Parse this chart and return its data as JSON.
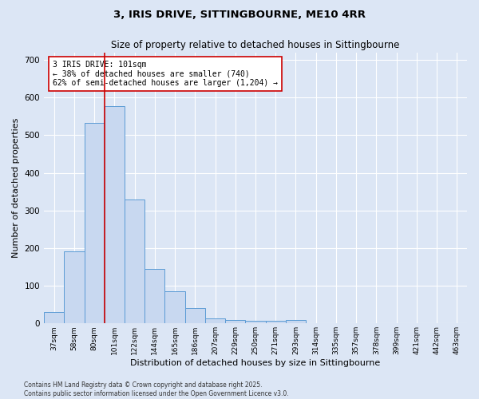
{
  "title_line1": "3, IRIS DRIVE, SITTINGBOURNE, ME10 4RR",
  "title_line2": "Size of property relative to detached houses in Sittingbourne",
  "xlabel": "Distribution of detached houses by size in Sittingbourne",
  "ylabel": "Number of detached properties",
  "categories": [
    "37sqm",
    "58sqm",
    "80sqm",
    "101sqm",
    "122sqm",
    "144sqm",
    "165sqm",
    "186sqm",
    "207sqm",
    "229sqm",
    "250sqm",
    "271sqm",
    "293sqm",
    "314sqm",
    "335sqm",
    "357sqm",
    "378sqm",
    "399sqm",
    "421sqm",
    "442sqm",
    "463sqm"
  ],
  "values": [
    30,
    192,
    533,
    578,
    330,
    145,
    85,
    40,
    13,
    10,
    7,
    7,
    10,
    0,
    0,
    0,
    0,
    0,
    0,
    0,
    0
  ],
  "bar_color": "#c8d8f0",
  "bar_edge_color": "#5b9bd5",
  "background_color": "#dce6f5",
  "grid_color": "#ffffff",
  "red_line_index": 3,
  "annotation_text": "3 IRIS DRIVE: 101sqm\n← 38% of detached houses are smaller (740)\n62% of semi-detached houses are larger (1,204) →",
  "annotation_box_color": "#ffffff",
  "annotation_box_edge": "#cc0000",
  "annotation_text_color": "#000000",
  "red_line_color": "#cc0000",
  "ylim": [
    0,
    720
  ],
  "yticks": [
    0,
    100,
    200,
    300,
    400,
    500,
    600,
    700
  ],
  "footer_line1": "Contains HM Land Registry data © Crown copyright and database right 2025.",
  "footer_line2": "Contains public sector information licensed under the Open Government Licence v3.0."
}
